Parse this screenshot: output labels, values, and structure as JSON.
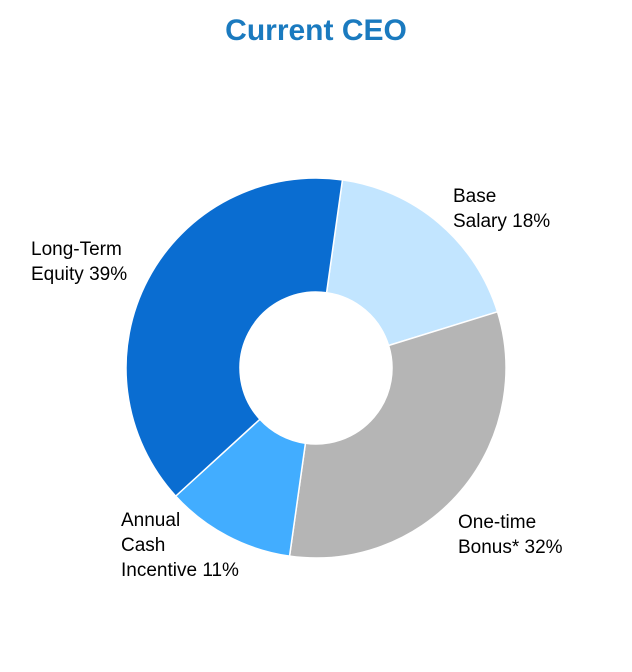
{
  "chart_data": {
    "type": "pie",
    "title": "Current CEO",
    "title_color": "#1a7abf",
    "donut": true,
    "slices": [
      {
        "label_lines": [
          "Base",
          "Salary 18%"
        ],
        "value": 18,
        "color": "#c2e5ff"
      },
      {
        "label_lines": [
          "One-time",
          "Bonus* 32%"
        ],
        "value": 32,
        "color": "#b5b5b5"
      },
      {
        "label_lines": [
          "Annual",
          "Cash",
          "Incentive 11%"
        ],
        "value": 11,
        "color": "#42adff"
      },
      {
        "label_lines": [
          "Long-Term",
          "Equity 39%"
        ],
        "value": 39,
        "color": "#0a6dd1"
      }
    ]
  }
}
